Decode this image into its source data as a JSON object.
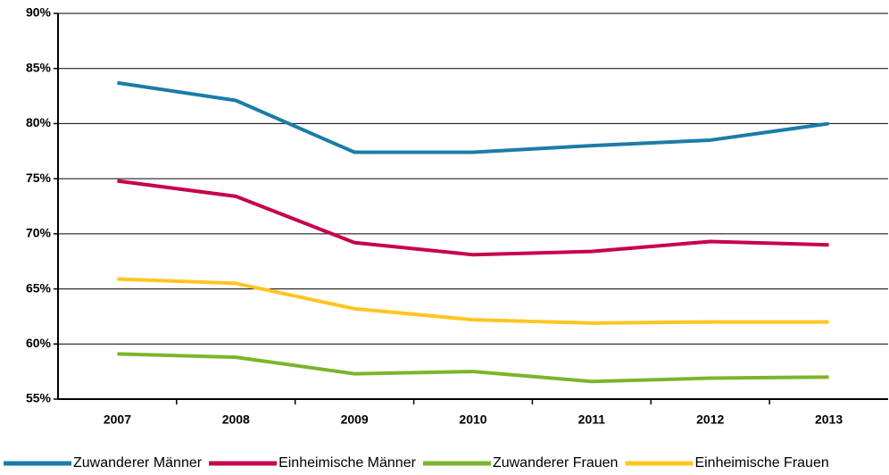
{
  "chart_data": {
    "type": "line",
    "categories": [
      "2007",
      "2008",
      "2009",
      "2010",
      "2011",
      "2012",
      "2013"
    ],
    "series": [
      {
        "name": "Zuwanderer Männer",
        "color": "#1b7ca6",
        "values": [
          83.7,
          82.1,
          77.4,
          77.4,
          78.0,
          78.5,
          80.0
        ]
      },
      {
        "name": "Einheimische Männer",
        "color": "#c6004f",
        "values": [
          74.8,
          73.4,
          69.2,
          68.1,
          68.4,
          69.3,
          69.0
        ]
      },
      {
        "name": "Zuwanderer Frauen",
        "color": "#7bb52b",
        "values": [
          59.1,
          58.8,
          57.3,
          57.5,
          56.6,
          56.9,
          57.0
        ]
      },
      {
        "name": "Einheimische Frauen",
        "color": "#ffc522",
        "values": [
          65.9,
          65.5,
          63.2,
          62.2,
          61.9,
          62.0,
          62.0
        ]
      }
    ],
    "ylim": [
      55,
      90
    ],
    "yticks": [
      {
        "value": 55,
        "label": "55%"
      },
      {
        "value": 60,
        "label": "60%"
      },
      {
        "value": 65,
        "label": "65%"
      },
      {
        "value": 70,
        "label": "70%"
      },
      {
        "value": 75,
        "label": "75%"
      },
      {
        "value": 80,
        "label": "80%"
      },
      {
        "value": 85,
        "label": "85%"
      },
      {
        "value": 90,
        "label": "90%"
      }
    ],
    "grid": true,
    "legend": "bottom"
  }
}
